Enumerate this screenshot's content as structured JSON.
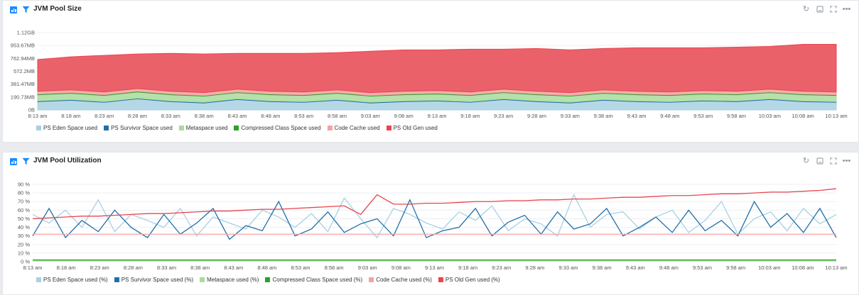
{
  "panels": [
    {
      "title": "JVM Pool Size",
      "tools": {
        "refresh": "refresh-icon",
        "minimize": "minimize-icon",
        "expand": "expand-icon",
        "more": "more-icon"
      }
    },
    {
      "title": "JVM Pool Utilization",
      "tools": {
        "refresh": "refresh-icon",
        "minimize": "minimize-icon",
        "expand": "expand-icon",
        "more": "more-icon"
      }
    }
  ],
  "chart_data": [
    {
      "type": "area",
      "stacked": true,
      "x_ticks": [
        "8:13 am",
        "8:18 am",
        "8:23 am",
        "8:28 am",
        "8:33 am",
        "8:38 am",
        "8:43 am",
        "8:48 am",
        "8:53 am",
        "8:58 am",
        "9:03 am",
        "9:08 am",
        "9:13 am",
        "9:18 am",
        "9:23 am",
        "9:28 am",
        "9:33 am",
        "9:38 am",
        "9:43 am",
        "9:48 am",
        "9:53 am",
        "9:58 am",
        "10:03 am",
        "10:08 am",
        "10:13 am"
      ],
      "y_ticks": [
        "0B",
        "190.73MB",
        "381.47MB",
        "572.2MB",
        "762.94MB",
        "953.67MB",
        "1.12GB"
      ],
      "ylim": [
        0,
        1.12
      ],
      "y_unit": "GB",
      "legend_position": "bottom-left",
      "series": [
        {
          "name": "PS Eden Space used",
          "color": "#a8d1e3",
          "values": [
            0.12,
            0.14,
            0.11,
            0.16,
            0.12,
            0.1,
            0.15,
            0.12,
            0.11,
            0.14,
            0.1,
            0.12,
            0.13,
            0.11,
            0.15,
            0.12,
            0.1,
            0.14,
            0.12,
            0.11,
            0.13,
            0.12,
            0.15,
            0.12,
            0.11
          ]
        },
        {
          "name": "PS Survivor Space used",
          "color": "#1f6fa8",
          "values": [
            0.01,
            0.01,
            0.01,
            0.01,
            0.01,
            0.01,
            0.01,
            0.01,
            0.01,
            0.01,
            0.01,
            0.01,
            0.01,
            0.01,
            0.01,
            0.01,
            0.01,
            0.01,
            0.01,
            0.01,
            0.01,
            0.01,
            0.01,
            0.01,
            0.01
          ]
        },
        {
          "name": "Metaspace used",
          "color": "#a9dc9b",
          "values": [
            0.09,
            0.09,
            0.09,
            0.09,
            0.09,
            0.09,
            0.09,
            0.09,
            0.09,
            0.09,
            0.09,
            0.09,
            0.09,
            0.09,
            0.09,
            0.09,
            0.09,
            0.09,
            0.09,
            0.09,
            0.09,
            0.09,
            0.09,
            0.09,
            0.09
          ]
        },
        {
          "name": "Compressed Class Space used",
          "color": "#2ca02c",
          "values": [
            0.01,
            0.01,
            0.01,
            0.01,
            0.01,
            0.01,
            0.01,
            0.01,
            0.01,
            0.01,
            0.01,
            0.01,
            0.01,
            0.01,
            0.01,
            0.01,
            0.01,
            0.01,
            0.01,
            0.01,
            0.01,
            0.01,
            0.01,
            0.01,
            0.01
          ]
        },
        {
          "name": "Code Cache used",
          "color": "#f4a3a3",
          "values": [
            0.04,
            0.04,
            0.04,
            0.04,
            0.04,
            0.04,
            0.04,
            0.04,
            0.04,
            0.04,
            0.04,
            0.04,
            0.04,
            0.04,
            0.04,
            0.04,
            0.04,
            0.04,
            0.04,
            0.04,
            0.04,
            0.04,
            0.04,
            0.04,
            0.04
          ]
        },
        {
          "name": "PS Old Gen used",
          "color": "#e8454f",
          "values": [
            0.46,
            0.48,
            0.53,
            0.5,
            0.55,
            0.56,
            0.52,
            0.55,
            0.56,
            0.54,
            0.6,
            0.6,
            0.59,
            0.62,
            0.58,
            0.62,
            0.62,
            0.6,
            0.63,
            0.64,
            0.62,
            0.64,
            0.62,
            0.68,
            0.69
          ]
        }
      ]
    },
    {
      "type": "line",
      "x_ticks": [
        "8:13 am",
        "8:18 am",
        "8:23 am",
        "8:28 am",
        "8:33 am",
        "8:38 am",
        "8:43 am",
        "8:48 am",
        "8:53 am",
        "8:58 am",
        "9:03 am",
        "9:08 am",
        "9:13 am",
        "9:18 am",
        "9:23 am",
        "9:28 am",
        "9:33 am",
        "9:38 am",
        "9:43 am",
        "9:48 am",
        "9:53 am",
        "9:58 am",
        "10:03 am",
        "10:08 am",
        "10:13 am"
      ],
      "y_ticks": [
        "0 %",
        "10 %",
        "20 %",
        "30 %",
        "40 %",
        "50 %",
        "60 %",
        "70 %",
        "80 %",
        "90 %"
      ],
      "ylim": [
        0,
        90
      ],
      "legend_position": "bottom-left",
      "series": [
        {
          "name": "PS Eden Space used (%)",
          "color": "#a8d1e3",
          "values": [
            55,
            45,
            60,
            40,
            72,
            35,
            55,
            48,
            40,
            62,
            30,
            52,
            45,
            38,
            60,
            52,
            40,
            56,
            35,
            74,
            50,
            28,
            62,
            55,
            45,
            38,
            58,
            48,
            65,
            36,
            50,
            44,
            30,
            78,
            40,
            55,
            58,
            38,
            52,
            60,
            34,
            48,
            70,
            32,
            50,
            58,
            36,
            62,
            44,
            55
          ]
        },
        {
          "name": "PS Survivor Space used (%)",
          "color": "#1f6fa8",
          "values": [
            30,
            62,
            28,
            48,
            35,
            60,
            40,
            28,
            55,
            32,
            45,
            62,
            26,
            42,
            36,
            70,
            30,
            38,
            58,
            34,
            44,
            50,
            30,
            72,
            28,
            36,
            40,
            62,
            30,
            46,
            54,
            32,
            58,
            38,
            44,
            62,
            30,
            40,
            52,
            34,
            60,
            36,
            48,
            30,
            70,
            40,
            56,
            34,
            62,
            28
          ]
        },
        {
          "name": "Metaspace used (%)",
          "color": "#a9dc9b",
          "values": [
            1,
            1,
            1,
            1,
            1,
            1,
            1,
            1,
            1,
            1,
            1,
            1,
            1,
            1,
            1,
            1,
            1,
            1,
            1,
            1,
            1,
            1,
            1,
            1,
            1,
            1,
            1,
            1,
            1,
            1,
            1,
            1,
            1,
            1,
            1,
            1,
            1,
            1,
            1,
            1,
            1,
            1,
            1,
            1,
            1,
            1,
            1,
            1,
            1,
            1
          ]
        },
        {
          "name": "Compressed Class Space used (%)",
          "color": "#2ca02c",
          "values": [
            2,
            2,
            2,
            2,
            2,
            2,
            2,
            2,
            2,
            2,
            2,
            2,
            2,
            2,
            2,
            2,
            2,
            2,
            2,
            2,
            2,
            2,
            2,
            2,
            2,
            2,
            2,
            2,
            2,
            2,
            2,
            2,
            2,
            2,
            2,
            2,
            2,
            2,
            2,
            2,
            2,
            2,
            2,
            2,
            2,
            2,
            2,
            2,
            2,
            2
          ]
        },
        {
          "name": "Code Cache used (%)",
          "color": "#f4a3a3",
          "values": [
            32,
            32,
            32,
            32,
            32,
            32,
            32,
            32,
            32,
            32,
            32,
            32,
            32,
            32,
            32,
            32,
            32,
            32,
            32,
            32,
            32,
            32,
            32,
            32,
            32,
            32,
            32,
            32,
            32,
            32,
            32,
            32,
            32,
            32,
            32,
            32,
            32,
            32,
            32,
            32,
            32,
            32,
            32,
            32,
            32,
            32,
            32,
            32,
            32,
            32
          ]
        },
        {
          "name": "PS Old Gen used (%)",
          "color": "#e8454f",
          "values": [
            50,
            51,
            52,
            53,
            53,
            54,
            55,
            56,
            56,
            57,
            58,
            59,
            59,
            60,
            61,
            61,
            62,
            63,
            64,
            65,
            55,
            78,
            67,
            67,
            68,
            68,
            69,
            70,
            70,
            71,
            71,
            72,
            72,
            73,
            73,
            74,
            75,
            75,
            76,
            77,
            77,
            78,
            79,
            79,
            80,
            81,
            81,
            82,
            83,
            85
          ]
        }
      ]
    }
  ]
}
